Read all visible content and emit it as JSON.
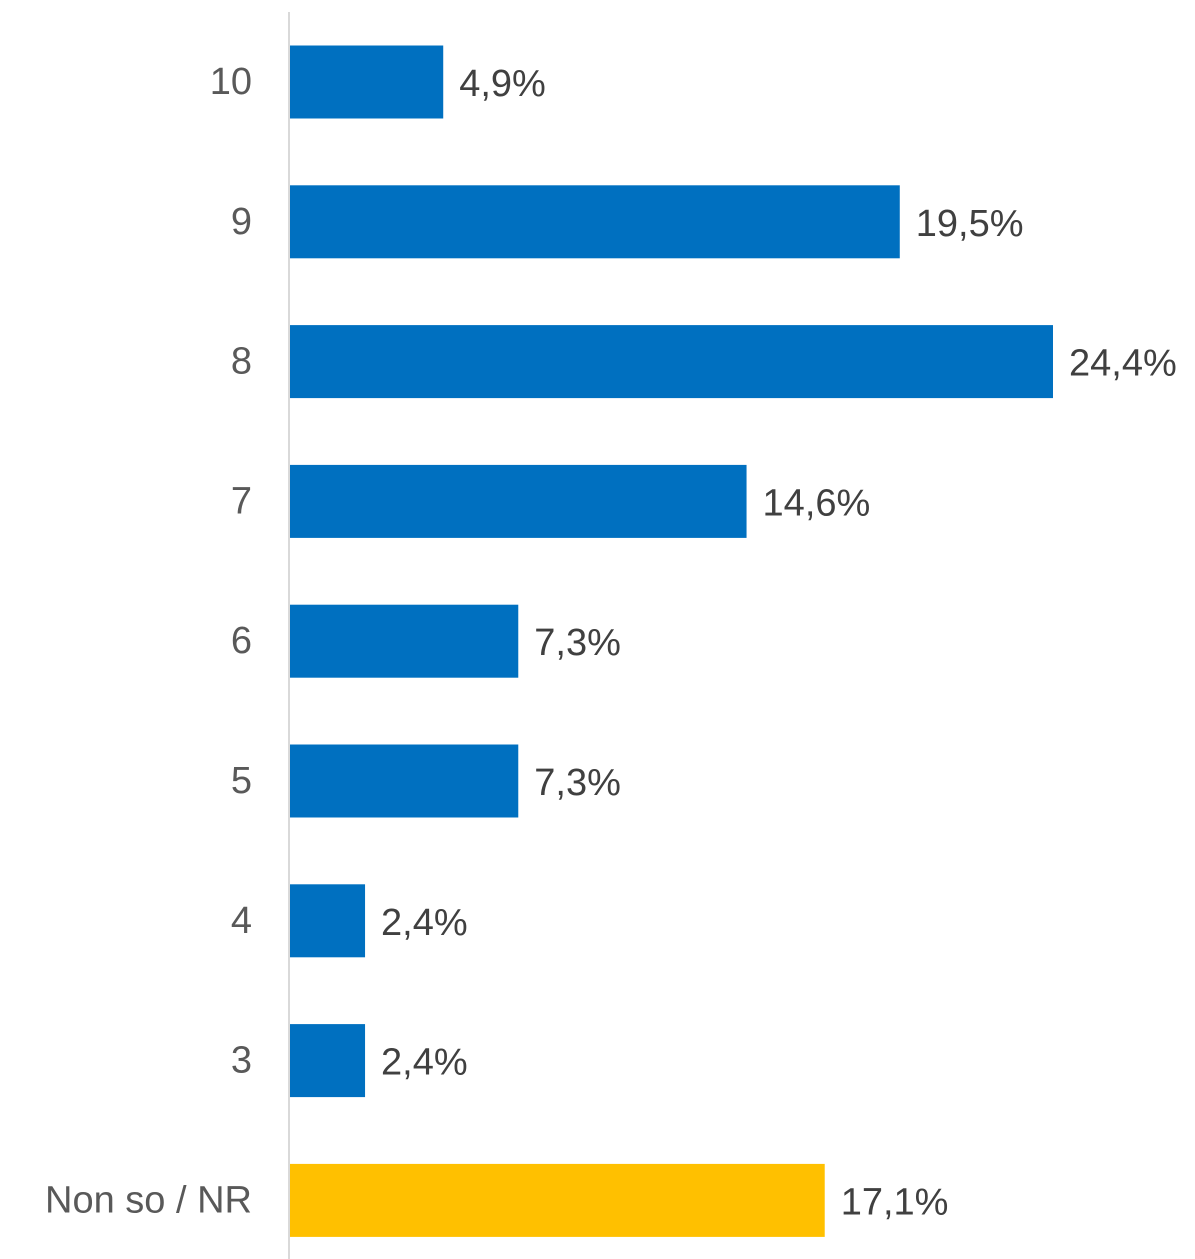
{
  "chart_data": {
    "type": "bar",
    "orientation": "horizontal",
    "categories": [
      "10",
      "9",
      "8",
      "7",
      "6",
      "5",
      "4",
      "3",
      "Non so / NR"
    ],
    "values": [
      4.9,
      19.5,
      24.4,
      14.6,
      7.3,
      7.3,
      2.4,
      2.4,
      17.1
    ],
    "value_labels": [
      "4,9%",
      "19,5%",
      "24,4%",
      "14,6%",
      "7,3%",
      "7,3%",
      "2,4%",
      "2,4%",
      "17,1%"
    ],
    "bar_colors": [
      "#0070C0",
      "#0070C0",
      "#0070C0",
      "#0070C0",
      "#0070C0",
      "#0070C0",
      "#0070C0",
      "#0070C0",
      "#FFC000"
    ],
    "axis_color": "#D9D9D9",
    "xlim": [
      0,
      24.4
    ],
    "grid": false,
    "legend": "none"
  }
}
